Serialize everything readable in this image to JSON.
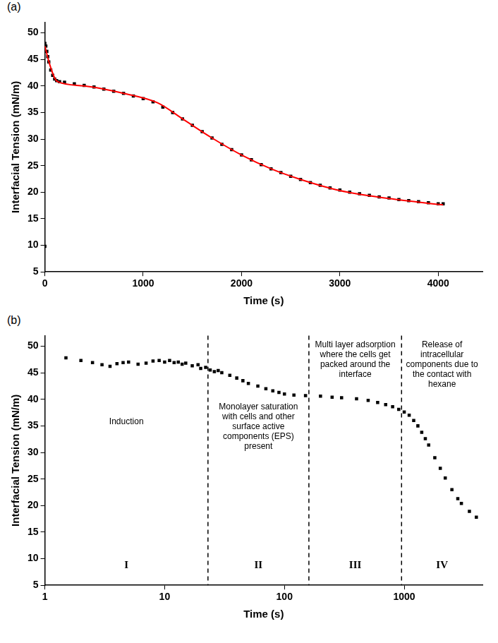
{
  "chart_data": [
    {
      "panel": "(a)",
      "type": "scatter",
      "x_label": "Time (s)",
      "y_label": "Interfacial Tension (mN/m)",
      "xlim": [
        0,
        4450
      ],
      "xticks": [
        0,
        1000,
        2000,
        3000,
        4000
      ],
      "ylim": [
        5,
        52
      ],
      "yticks": [
        5,
        10,
        15,
        20,
        25,
        30,
        35,
        40,
        45,
        50
      ],
      "grid": false,
      "series": [
        {
          "color": "#000000",
          "marker": "square",
          "x": [
            0,
            0,
            10,
            20,
            30,
            40,
            60,
            80,
            100,
            120,
            150,
            200,
            300,
            400,
            500,
            600,
            700,
            800,
            900,
            1000,
            1100,
            1200,
            1300,
            1400,
            1500,
            1600,
            1700,
            1800,
            1900,
            2000,
            2100,
            2200,
            2300,
            2400,
            2500,
            2600,
            2700,
            2800,
            2900,
            3000,
            3100,
            3200,
            3300,
            3400,
            3500,
            3600,
            3700,
            3800,
            3900,
            4000,
            4050
          ],
          "values": [
            9.8,
            48,
            47.5,
            46.5,
            45.5,
            44.5,
            43,
            42,
            41.3,
            41,
            40.8,
            40.7,
            40.4,
            40.1,
            39.8,
            39.4,
            39,
            38.6,
            38.1,
            37.6,
            37,
            36,
            35,
            33.8,
            32.6,
            31.4,
            30.2,
            29,
            28,
            27,
            26.1,
            25.2,
            24.4,
            23.7,
            23,
            22.4,
            21.8,
            21.3,
            20.8,
            20.4,
            20,
            19.7,
            19.4,
            19.1,
            18.9,
            18.6,
            18.4,
            18.2,
            18,
            17.8,
            17.8
          ]
        },
        {
          "color": "#ff0000",
          "type": "line",
          "marker": "none",
          "x": [
            0,
            50,
            100,
            130,
            400,
            800,
            1150,
            1400,
            1700,
            2000,
            2300,
            2600,
            3000,
            3500,
            4050
          ],
          "values": [
            47.5,
            44,
            41.5,
            40.8,
            40,
            38.6,
            36.8,
            33.8,
            30.2,
            27,
            24.4,
            22.4,
            20.3,
            18.8,
            17.6
          ]
        }
      ]
    },
    {
      "panel": "(b)",
      "type": "scatter",
      "log": "x",
      "x_label": "Time (s)",
      "y_label": "Interfacial Tension (mN/m)",
      "xlim": [
        1,
        4500
      ],
      "xticks": [
        1,
        10,
        100,
        1000
      ],
      "ylim": [
        5,
        52
      ],
      "yticks": [
        5,
        10,
        15,
        20,
        25,
        30,
        35,
        40,
        45,
        50
      ],
      "grid": false,
      "series": [
        {
          "color": "#000000",
          "marker": "square",
          "x": [
            1.5,
            2,
            2.5,
            3,
            3.5,
            4,
            4.5,
            5,
            6,
            7,
            8,
            9,
            10,
            11,
            12,
            13,
            14,
            15,
            17,
            19,
            20,
            22,
            24,
            26,
            28,
            30,
            35,
            40,
            45,
            50,
            60,
            70,
            80,
            90,
            100,
            120,
            150,
            200,
            250,
            300,
            400,
            500,
            600,
            700,
            800,
            900,
            1000,
            1100,
            1200,
            1300,
            1400,
            1500,
            1600,
            1800,
            2000,
            2200,
            2500,
            2800,
            3000,
            3500,
            4000
          ],
          "values": [
            47.8,
            47.3,
            46.9,
            46.5,
            46.2,
            46.7,
            46.9,
            47,
            46.6,
            46.8,
            47.2,
            47.3,
            47,
            47.3,
            46.9,
            47,
            46.6,
            46.8,
            46.3,
            46.5,
            45.8,
            46,
            45.5,
            45.2,
            45.4,
            45,
            44.5,
            44,
            43.5,
            43,
            42.5,
            42,
            41.6,
            41.3,
            41,
            40.8,
            40.7,
            40.6,
            40.4,
            40.3,
            40.1,
            39.8,
            39.4,
            39,
            38.6,
            38.1,
            37.6,
            37,
            36,
            35,
            33.8,
            32.6,
            31.4,
            29,
            27,
            25.2,
            23,
            21.3,
            20.4,
            18.9,
            17.8
          ]
        }
      ],
      "dividers": [
        23,
        160,
        950
      ],
      "regions": [
        {
          "label": "I",
          "annotation": "Induction"
        },
        {
          "label": "II",
          "annotation": "Monolayer saturation with cells and other surface active components (EPS) present"
        },
        {
          "label": "III",
          "annotation": "Multi layer adsorption where the cells get packed around the interface"
        },
        {
          "label": "IV",
          "annotation": "Release of intracellular components due to the contact with hexane"
        }
      ]
    }
  ]
}
